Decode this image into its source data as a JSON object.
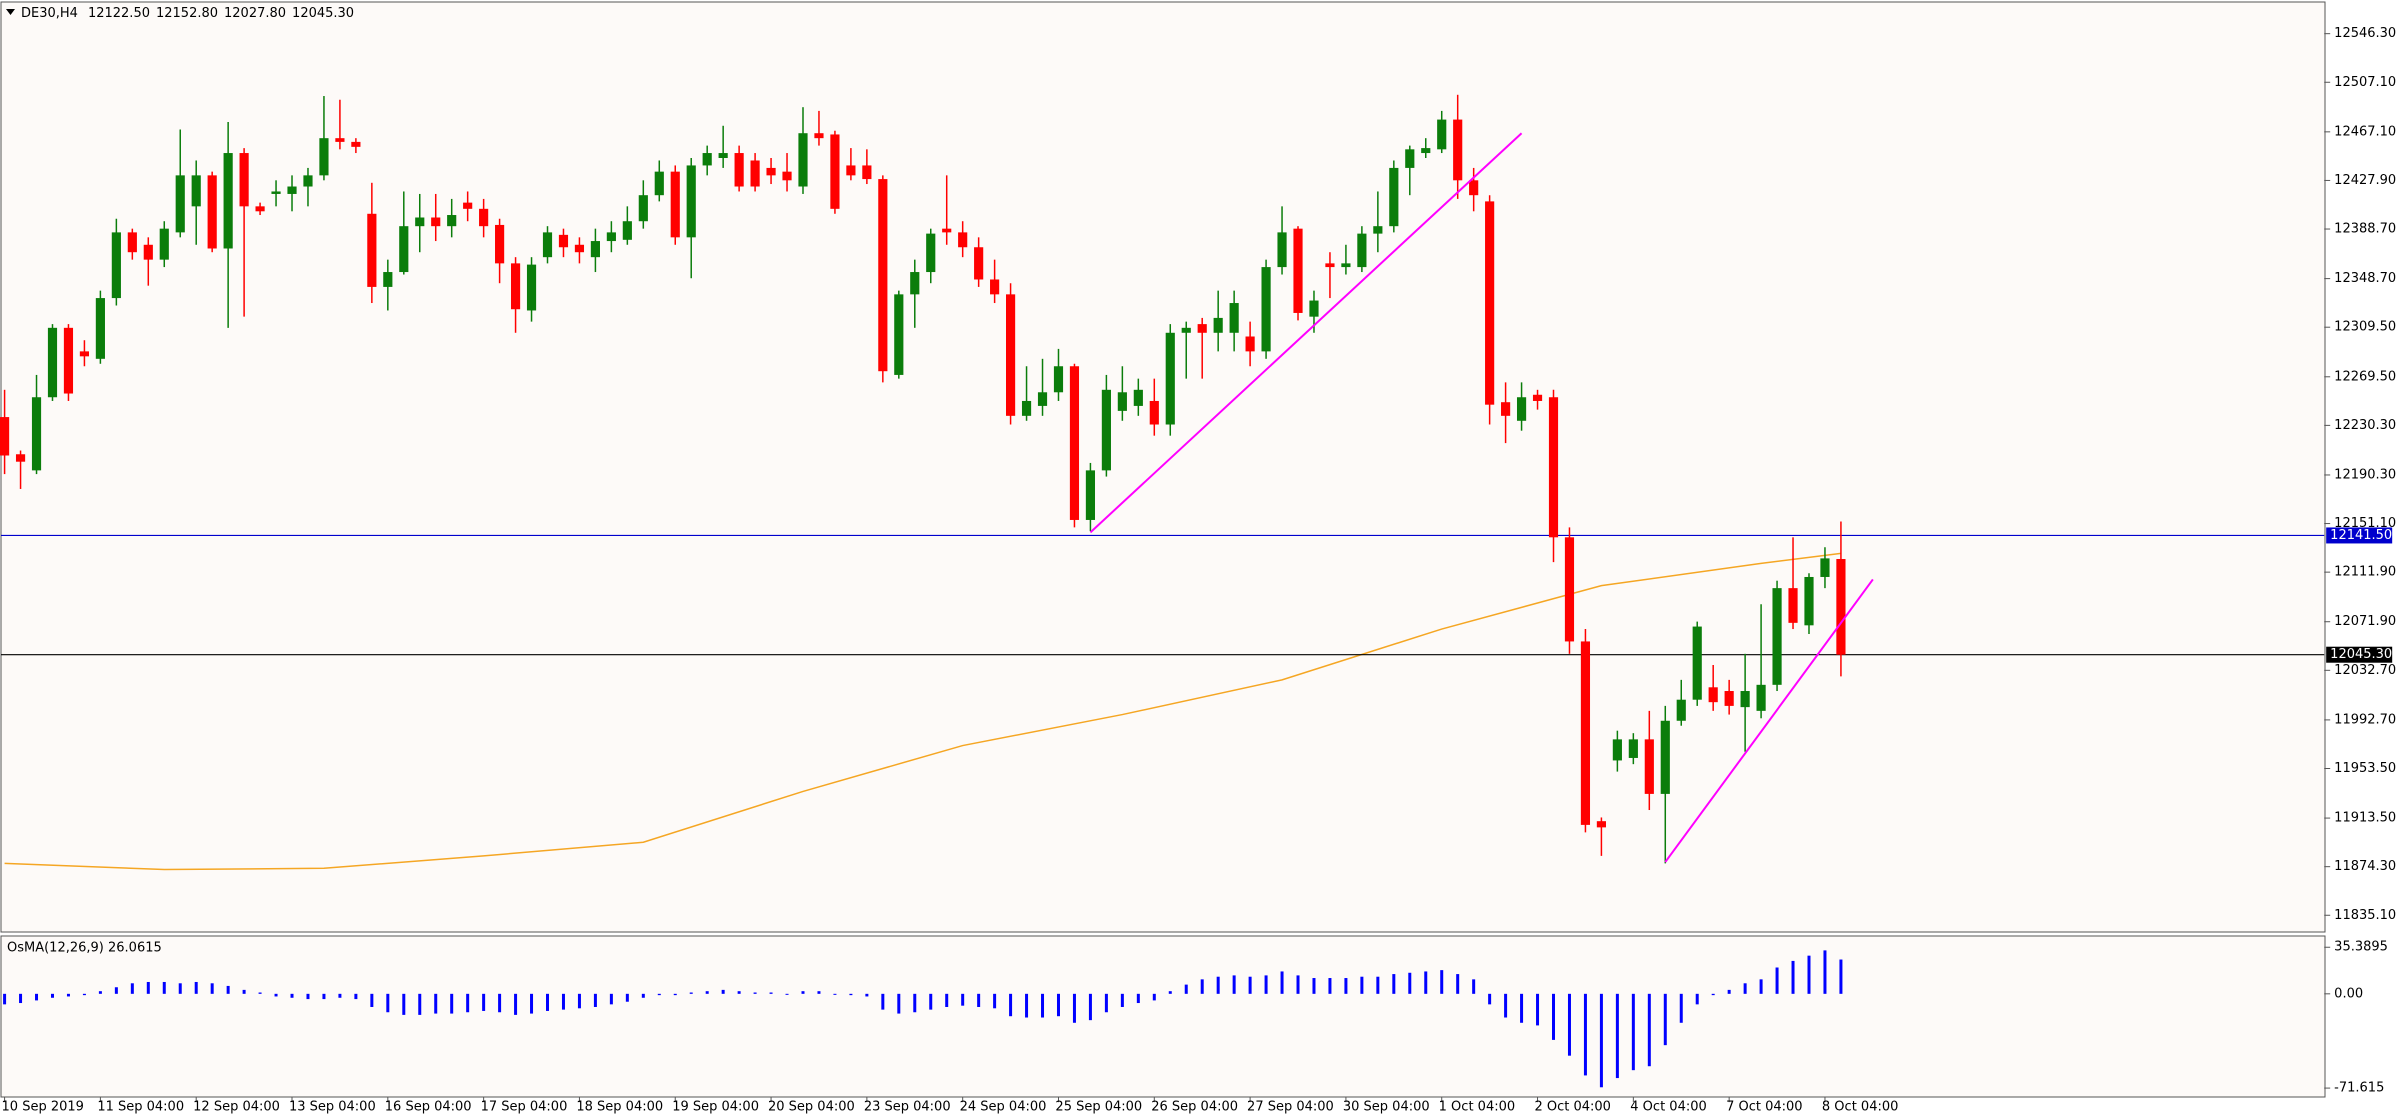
{
  "chart_data": [
    {
      "type": "candlestick",
      "title": "DE30,H4",
      "last_bar_labels": [
        "12122.50",
        "12152.80",
        "12027.80",
        "12045.30"
      ],
      "categories": [
        "10 Sep 2019",
        null,
        null,
        null,
        null,
        null,
        "11 Sep 04:00",
        null,
        null,
        null,
        null,
        null,
        "12 Sep 04:00",
        null,
        null,
        null,
        null,
        null,
        "13 Sep 04:00",
        null,
        null,
        null,
        null,
        null,
        "16 Sep 04:00",
        null,
        null,
        null,
        null,
        null,
        "17 Sep 04:00",
        null,
        null,
        null,
        null,
        null,
        "18 Sep 04:00",
        null,
        null,
        null,
        null,
        null,
        "19 Sep 04:00",
        null,
        null,
        null,
        null,
        null,
        "20 Sep 04:00",
        null,
        null,
        null,
        null,
        null,
        "23 Sep 04:00",
        null,
        null,
        null,
        null,
        null,
        "24 Sep 04:00",
        null,
        null,
        null,
        null,
        null,
        "25 Sep 04:00",
        null,
        null,
        null,
        null,
        null,
        "26 Sep 04:00",
        null,
        null,
        null,
        null,
        null,
        "27 Sep 04:00",
        null,
        null,
        null,
        null,
        null,
        "30 Sep 04:00",
        null,
        null,
        null,
        null,
        null,
        "1 Oct 04:00",
        null,
        null,
        null,
        null,
        null,
        "2 Oct 04:00",
        null,
        null,
        null,
        null,
        null,
        "4 Oct 04:00",
        null,
        null,
        null,
        null,
        null,
        "7 Oct 04:00",
        null,
        null,
        null,
        null,
        null,
        "8 Oct 04:00",
        null
      ],
      "open": [
        12237,
        12207,
        12194,
        12253,
        12309,
        12290,
        12284,
        12333,
        12386,
        12376,
        12364,
        12386,
        12407,
        12432,
        12373,
        12450,
        12407,
        12417,
        12417,
        12423,
        12432,
        12462,
        12459,
        12401,
        12342,
        12354,
        12391,
        12398,
        12391,
        12410,
        12405,
        12392,
        12361,
        12323,
        12366,
        12384,
        12376,
        12366,
        12379,
        12380,
        12395,
        12416,
        12435,
        12382,
        12440,
        12446,
        12450,
        12444,
        12438,
        12435,
        12423,
        12466,
        12465,
        12440,
        12440,
        12429,
        12271,
        12336,
        12354,
        12389,
        12386,
        12374,
        12348,
        12336,
        12238,
        12246,
        12257,
        12278,
        12154,
        12194,
        12242,
        12246,
        12250,
        12231,
        12305,
        12312,
        12305,
        12305,
        12302,
        12290,
        12358,
        12389,
        12318,
        12361,
        12358,
        12358,
        12385,
        12391,
        12438,
        12450,
        12453,
        12477,
        12428,
        12411,
        12249,
        12234,
        12255,
        12253,
        12140,
        12056,
        11911,
        11960,
        11962,
        11977,
        11933,
        11992,
        12009,
        12019,
        12016,
        12003,
        12000,
        12021,
        12099,
        12069,
        12108,
        12122.5
      ],
      "high": [
        12259,
        12210,
        12271,
        12312,
        12312,
        12299,
        12339,
        12397,
        12389,
        12382,
        12395,
        12469,
        12444,
        12435,
        12475,
        12454,
        12410,
        12428,
        12432,
        12438,
        12496,
        12493,
        12462,
        12426,
        12364,
        12419,
        12417,
        12417,
        12413,
        12419,
        12413,
        12397,
        12366,
        12366,
        12391,
        12389,
        12382,
        12389,
        12395,
        12407,
        12428,
        12444,
        12440,
        12446,
        12456,
        12472,
        12456,
        12450,
        12446,
        12450,
        12487,
        12484,
        12468,
        12454,
        12453,
        12432,
        12339,
        12364,
        12389,
        12432,
        12395,
        12382,
        12364,
        12345,
        12278,
        12284,
        12292,
        12280,
        12200,
        12271,
        12278,
        12268,
        12268,
        12312,
        12314,
        12317,
        12339,
        12339,
        12314,
        12364,
        12407,
        12391,
        12339,
        12370,
        12376,
        12391,
        12419,
        12444,
        12456,
        12462,
        12484,
        12497,
        12438,
        12416,
        12265,
        12265,
        12259,
        12259,
        12148,
        12066,
        11914,
        11984,
        11982,
        12000,
        12004,
        12025,
        12072,
        12037,
        12025,
        12046,
        12086,
        12105,
        12140,
        12111,
        12132,
        12152.8
      ],
      "low": [
        12191,
        12179,
        12191,
        12250,
        12250,
        12278,
        12280,
        12327,
        12364,
        12343,
        12358,
        12382,
        12376,
        12370,
        12309,
        12318,
        12400,
        12407,
        12403,
        12407,
        12428,
        12453,
        12450,
        12329,
        12323,
        12352,
        12370,
        12379,
        12382,
        12395,
        12382,
        12345,
        12305,
        12314,
        12361,
        12366,
        12361,
        12354,
        12370,
        12376,
        12389,
        12411,
        12376,
        12349,
        12432,
        12438,
        12419,
        12419,
        12425,
        12419,
        12417,
        12456,
        12401,
        12428,
        12425,
        12265,
        12268,
        12309,
        12345,
        12376,
        12366,
        12342,
        12329,
        12231,
        12234,
        12238,
        12250,
        12148,
        12145,
        12189,
        12234,
        12238,
        12222,
        12222,
        12268,
        12268,
        12290,
        12290,
        12278,
        12284,
        12352,
        12315,
        12305,
        12333,
        12352,
        12354,
        12370,
        12386,
        12416,
        12446,
        12450,
        12413,
        12403,
        12231,
        12216,
        12226,
        12243,
        12120,
        12046,
        11902,
        11883,
        11951,
        11957,
        11920,
        11877,
        11988,
        12004,
        12000,
        11997,
        11967,
        11994,
        12016,
        12066,
        12062,
        12099,
        12027.8
      ],
      "close": [
        12206,
        12201,
        12253,
        12309,
        12256,
        12286,
        12333,
        12386,
        12370,
        12364,
        12389,
        12432,
        12432,
        12373,
        12450,
        12407,
        12403,
        12419,
        12423,
        12432,
        12462,
        12459,
        12455,
        12342,
        12354,
        12391,
        12398,
        12391,
        12400,
        12405,
        12391,
        12361,
        12324,
        12360,
        12386,
        12374,
        12370,
        12379,
        12386,
        12395,
        12416,
        12435,
        12382,
        12440,
        12450,
        12450,
        12423,
        12423,
        12432,
        12428,
        12466,
        12462,
        12405,
        12432,
        12429,
        12274,
        12336,
        12354,
        12385,
        12386,
        12374,
        12348,
        12336,
        12238,
        12250,
        12257,
        12278,
        12154,
        12194,
        12259,
        12257,
        12259,
        12231,
        12305,
        12309,
        12305,
        12317,
        12329,
        12290,
        12358,
        12386,
        12321,
        12331,
        12358,
        12361,
        12385,
        12391,
        12438,
        12453,
        12454,
        12477,
        12428,
        12416,
        12247,
        12238,
        12253,
        12250,
        12140,
        12056,
        11908,
        11906,
        11977,
        11977,
        11933,
        11992,
        12009,
        12068,
        12007,
        12004,
        12016,
        12021,
        12099,
        12071,
        12108,
        12123,
        12045.3
      ],
      "up_color": "#0b7d0b",
      "down_color": "#ff0000",
      "ma": {
        "color": "#f5a623",
        "x": [
          0,
          10,
          20,
          30,
          40,
          50,
          60,
          70,
          80,
          90,
          100,
          110,
          115
        ],
        "values": [
          11877,
          11872,
          11873,
          11883,
          11894,
          11935,
          11972,
          11997,
          12025,
          12066,
          12101,
          12119,
          12127
        ]
      },
      "trendlines": [
        {
          "color": "#ff00ff",
          "x": [
            68,
            95
          ],
          "values": [
            12144,
            12466
          ]
        },
        {
          "color": "#ff00ff",
          "x": [
            104,
            117
          ],
          "values": [
            11878,
            12106
          ]
        }
      ],
      "hlines": [
        {
          "value": 12141.5,
          "label": "12141.50",
          "color": "#0000cd"
        },
        {
          "value": 12045.3,
          "label": "12045.30",
          "color": "#000000"
        }
      ],
      "ylim": [
        11821.5,
        12571.0
      ],
      "yticks": [
        {
          "value": 12546.3,
          "label": "12546.30"
        },
        {
          "value": 12507.1,
          "label": "12507.10"
        },
        {
          "value": 12467.1,
          "label": "12467.10"
        },
        {
          "value": 12427.9,
          "label": "12427.90"
        },
        {
          "value": 12388.7,
          "label": "12388.70"
        },
        {
          "value": 12348.7,
          "label": "12348.70"
        },
        {
          "value": 12309.5,
          "label": "12309.50"
        },
        {
          "value": 12269.5,
          "label": "12269.50"
        },
        {
          "value": 12230.3,
          "label": "12230.30"
        },
        {
          "value": 12190.3,
          "label": "12190.30"
        },
        {
          "value": 12151.1,
          "label": "12151.10"
        },
        {
          "value": 12111.9,
          "label": "12111.90"
        },
        {
          "value": 12071.9,
          "label": "12071.90"
        },
        {
          "value": 12032.7,
          "label": "12032.70"
        },
        {
          "value": 11992.7,
          "label": "11992.70"
        },
        {
          "value": 11953.5,
          "label": "11953.50"
        },
        {
          "value": 11913.5,
          "label": "11913.50"
        },
        {
          "value": 11874.3,
          "label": "11874.30"
        },
        {
          "value": 11835.1,
          "label": "11835.10"
        }
      ]
    },
    {
      "type": "bar",
      "title": "OsMA(12,26,9) 26.0615",
      "color": "#0000ff",
      "values": [
        -8,
        -7,
        -5,
        -3,
        -2,
        -1,
        2,
        5,
        8,
        9,
        9,
        8,
        9,
        8,
        6,
        3,
        1,
        -2,
        -3,
        -4,
        -4,
        -3,
        -4,
        -10,
        -14,
        -16,
        -16,
        -15,
        -15,
        -14,
        -13,
        -14,
        -16,
        -15,
        -13,
        -12,
        -11,
        -10,
        -8,
        -6,
        -3,
        -1,
        -1,
        1,
        2,
        3,
        2,
        1,
        1,
        0,
        2,
        2,
        0,
        -1,
        -2,
        -12,
        -15,
        -14,
        -12,
        -10,
        -9,
        -10,
        -11,
        -17,
        -18,
        -18,
        -17,
        -22,
        -20,
        -14,
        -10,
        -7,
        -5,
        2,
        7,
        11,
        13,
        14,
        13,
        14,
        17,
        14,
        12,
        12,
        12,
        13,
        13,
        15,
        16,
        17,
        18,
        15,
        11,
        -8,
        -18,
        -22,
        -24,
        -35,
        -47,
        -62,
        -71,
        -64,
        -58,
        -55,
        -39,
        -22,
        -8,
        -1,
        3,
        8,
        11,
        20,
        25,
        29,
        33,
        26.0615
      ],
      "ylim": [
        -78.5,
        43.4
      ],
      "yticks": [
        35.3895,
        {
          "value": 0,
          "label": "0.00"
        },
        -71.615
      ]
    }
  ]
}
